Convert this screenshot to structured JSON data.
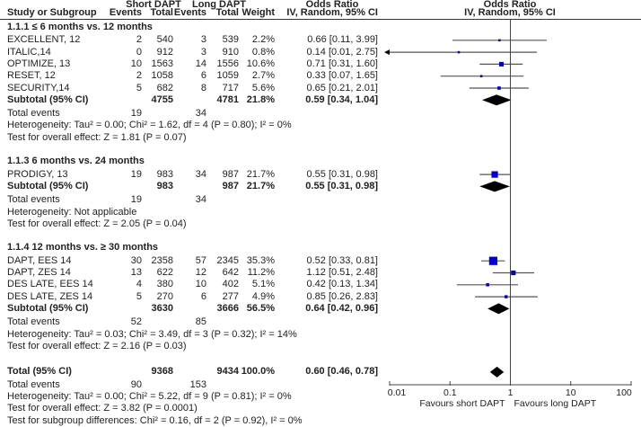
{
  "header": {
    "group1": "Short DAPT",
    "group2": "Long DAPT",
    "or_col_top": "Odds Ratio",
    "or_plot_top": "Odds Ratio",
    "col_study": "Study or Subgroup",
    "col_events1": "Events",
    "col_total1": "Total",
    "col_events2": "Events",
    "col_total2": "Total",
    "col_weight": "Weight",
    "col_or": "IV, Random, 95% CI",
    "col_plot": "IV, Random, 95% CI"
  },
  "subgroups": [
    {
      "title": "1.1.1 ≤ 6 months vs. 12 months",
      "studies": [
        {
          "name": "EXCELLENT, 12",
          "e1": "2",
          "t1": "540",
          "e2": "3",
          "t2": "539",
          "weight": "2.2%",
          "ci_text": "0.66 [0.11, 3.99]",
          "or": 0.66,
          "lo": 0.11,
          "hi": 3.99,
          "w": 2.2
        },
        {
          "name": "ITALIC,14",
          "e1": "0",
          "t1": "912",
          "e2": "3",
          "t2": "910",
          "weight": "0.8%",
          "ci_text": "0.14 [0.01, 2.75]",
          "or": 0.14,
          "lo": 0.01,
          "hi": 2.75,
          "w": 0.8
        },
        {
          "name": "OPTIMIZE, 13",
          "e1": "10",
          "t1": "1563",
          "e2": "14",
          "t2": "1556",
          "weight": "10.6%",
          "ci_text": "0.71 [0.31, 1.60]",
          "or": 0.71,
          "lo": 0.31,
          "hi": 1.6,
          "w": 10.6
        },
        {
          "name": "RESET, 12",
          "e1": "2",
          "t1": "1058",
          "e2": "6",
          "t2": "1059",
          "weight": "2.7%",
          "ci_text": "0.33 [0.07, 1.65]",
          "or": 0.33,
          "lo": 0.07,
          "hi": 1.65,
          "w": 2.7
        },
        {
          "name": "SECURITY,14",
          "e1": "5",
          "t1": "682",
          "e2": "8",
          "t2": "717",
          "weight": "5.6%",
          "ci_text": "0.65 [0.21, 2.01]",
          "or": 0.65,
          "lo": 0.21,
          "hi": 2.01,
          "w": 5.6
        }
      ],
      "subtotal": {
        "label": "Subtotal (95% CI)",
        "t1": "4755",
        "t2": "4781",
        "weight": "21.8%",
        "ci_text": "0.59 [0.34, 1.04]",
        "or": 0.59,
        "lo": 0.34,
        "hi": 1.04
      },
      "total_events": {
        "label": "Total events",
        "e1": "19",
        "e2": "34"
      },
      "heterogeneity": "Heterogeneity: Tau² = 0.00; Chi² = 1.62, df = 4 (P = 0.80); I² = 0%",
      "overall": "Test for overall effect: Z = 1.81 (P = 0.07)"
    },
    {
      "title": "1.1.3 6 months vs. 24 months",
      "studies": [
        {
          "name": "PRODIGY, 13",
          "e1": "19",
          "t1": "983",
          "e2": "34",
          "t2": "987",
          "weight": "21.7%",
          "ci_text": "0.55 [0.31, 0.98]",
          "or": 0.55,
          "lo": 0.31,
          "hi": 0.98,
          "w": 21.7
        }
      ],
      "subtotal": {
        "label": "Subtotal (95% CI)",
        "t1": "983",
        "t2": "987",
        "weight": "21.7%",
        "ci_text": "0.55 [0.31, 0.98]",
        "or": 0.55,
        "lo": 0.31,
        "hi": 0.98
      },
      "total_events": {
        "label": "Total events",
        "e1": "19",
        "e2": "34"
      },
      "heterogeneity": "Heterogeneity: Not applicable",
      "overall": "Test for overall effect: Z = 2.05 (P = 0.04)"
    },
    {
      "title": "1.1.4 12 months vs. ≥ 30 months",
      "studies": [
        {
          "name": "DAPT, EES 14",
          "e1": "30",
          "t1": "2358",
          "e2": "57",
          "t2": "2345",
          "weight": "35.3%",
          "ci_text": "0.52 [0.33, 0.81]",
          "or": 0.52,
          "lo": 0.33,
          "hi": 0.81,
          "w": 35.3
        },
        {
          "name": "DAPT, ZES 14",
          "e1": "13",
          "t1": "622",
          "e2": "12",
          "t2": "642",
          "weight": "11.2%",
          "ci_text": "1.12 [0.51, 2.48]",
          "or": 1.12,
          "lo": 0.51,
          "hi": 2.48,
          "w": 11.2
        },
        {
          "name": "DES LATE, EES 14",
          "e1": "4",
          "t1": "380",
          "e2": "10",
          "t2": "402",
          "weight": "5.1%",
          "ci_text": "0.42 [0.13, 1.34]",
          "or": 0.42,
          "lo": 0.13,
          "hi": 1.34,
          "w": 5.1
        },
        {
          "name": "DES LATE, ZES 14",
          "e1": "5",
          "t1": "270",
          "e2": "6",
          "t2": "277",
          "weight": "4.9%",
          "ci_text": "0.85 [0.26, 2.83]",
          "or": 0.85,
          "lo": 0.26,
          "hi": 2.83,
          "w": 4.9
        }
      ],
      "subtotal": {
        "label": "Subtotal (95% CI)",
        "t1": "3630",
        "t2": "3666",
        "weight": "56.5%",
        "ci_text": "0.64 [0.42, 0.96]",
        "or": 0.64,
        "lo": 0.42,
        "hi": 0.96
      },
      "total_events": {
        "label": "Total events",
        "e1": "52",
        "e2": "85"
      },
      "heterogeneity": "Heterogeneity: Tau² = 0.03; Chi² = 3.49, df = 3 (P = 0.32); I² = 14%",
      "overall": "Test for overall effect: Z = 2.16 (P = 0.03)"
    }
  ],
  "total": {
    "label": "Total (95% CI)",
    "t1": "9368",
    "t2": "9434",
    "weight": "100.0%",
    "ci_text": "0.60 [0.46, 0.78]",
    "or": 0.6,
    "lo": 0.46,
    "hi": 0.78
  },
  "total_events": {
    "label": "Total events",
    "e1": "90",
    "e2": "153"
  },
  "total_heterogeneity": "Heterogeneity: Tau² = 0.00; Chi² = 5.22, df = 9 (P = 0.81); I² = 0%",
  "total_overall": "Test for overall effect: Z = 3.82 (P = 0.0001)",
  "subgroup_diff": "Test for subgroup differences: Chi² = 0.16, df = 2 (P = 0.92), I² = 0%",
  "colors": {
    "square": "#0000cc",
    "diamond": "#000000",
    "ci_line": "#555555",
    "axis": "#444444"
  },
  "chart_data": {
    "type": "forest",
    "title": "Odds Ratio IV, Random, 95% CI",
    "xscale": "log",
    "xlim": [
      0.01,
      100
    ],
    "ticks": [
      "0.01",
      "0.1",
      "1",
      "10",
      "100"
    ],
    "tick_values": [
      0.01,
      0.1,
      1,
      10,
      100
    ],
    "xlabel_left": "Favours short DAPT",
    "xlabel_right": "Favours long DAPT",
    "reference_line": 1
  }
}
